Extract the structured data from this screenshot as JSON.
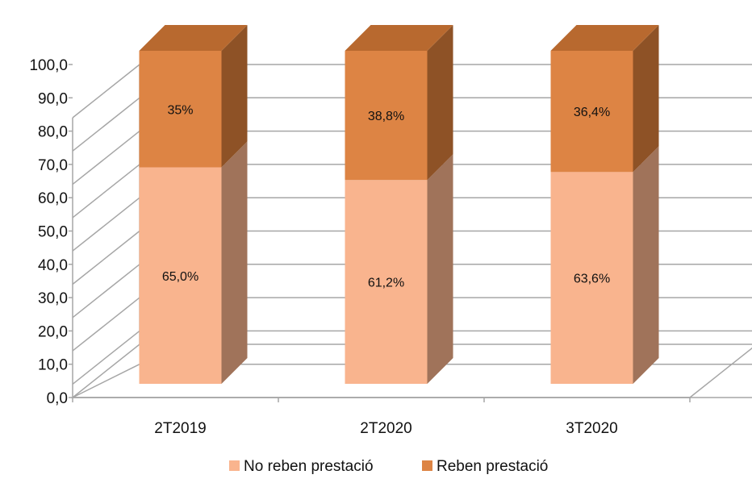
{
  "chart_data": {
    "type": "bar",
    "stacked": true,
    "three_d": true,
    "categories": [
      "2T2019",
      "2T2020",
      "3T2020"
    ],
    "series": [
      {
        "name": "No reben prestació",
        "values": [
          65.0,
          61.2,
          63.6
        ],
        "labels": [
          "65,0%",
          "61,2%",
          "63,6%"
        ],
        "color": "#F9B48E"
      },
      {
        "name": "Reben prestació",
        "values": [
          35.0,
          38.8,
          36.4
        ],
        "labels": [
          "35%",
          "38,8%",
          "36,4%"
        ],
        "color": "#DD8444"
      }
    ],
    "y_ticks": [
      "0,0",
      "10,0",
      "20,0",
      "30,0",
      "40,0",
      "50,0",
      "60,0",
      "70,0",
      "80,0",
      "90,0",
      "100,0"
    ],
    "ylim": [
      0,
      100
    ],
    "grid": true,
    "legend_position": "bottom"
  }
}
